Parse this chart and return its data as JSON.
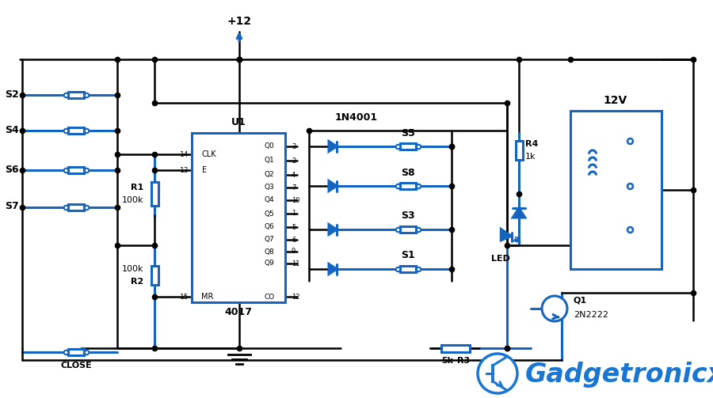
{
  "bg_color": "#ffffff",
  "wire_color": "#000000",
  "blue_color": "#1565C0",
  "line_width": 1.8,
  "blue_lw": 2.2,
  "logo_text": "Gadgetronicx",
  "logo_color": "#1976D2",
  "switches_left": [
    "S2",
    "S4",
    "S6",
    "S7"
  ],
  "switches_right": [
    "S5",
    "S8",
    "S3",
    "S1"
  ]
}
